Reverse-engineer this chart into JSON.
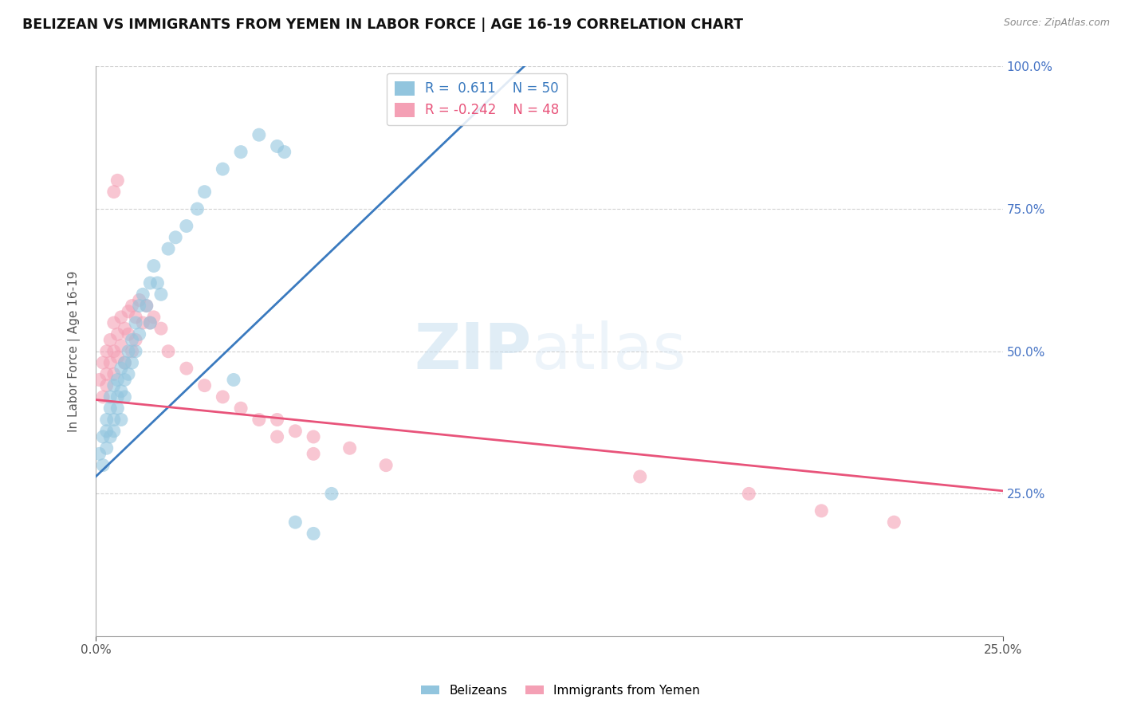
{
  "title": "BELIZEAN VS IMMIGRANTS FROM YEMEN IN LABOR FORCE | AGE 16-19 CORRELATION CHART",
  "source_text": "Source: ZipAtlas.com",
  "ylabel": "In Labor Force | Age 16-19",
  "xlim": [
    0.0,
    0.25
  ],
  "ylim": [
    0.0,
    1.0
  ],
  "blue_R": 0.611,
  "blue_N": 50,
  "pink_R": -0.242,
  "pink_N": 48,
  "blue_color": "#92c5de",
  "pink_color": "#f4a0b5",
  "blue_line_color": "#3a7abf",
  "pink_line_color": "#e8537a",
  "watermark_zip": "ZIP",
  "watermark_atlas": "atlas",
  "legend_label_blue": "Belizeans",
  "legend_label_pink": "Immigrants from Yemen",
  "blue_scatter_x": [
    0.001,
    0.002,
    0.002,
    0.003,
    0.003,
    0.003,
    0.004,
    0.004,
    0.004,
    0.005,
    0.005,
    0.005,
    0.006,
    0.006,
    0.006,
    0.007,
    0.007,
    0.007,
    0.008,
    0.008,
    0.008,
    0.009,
    0.009,
    0.01,
    0.01,
    0.011,
    0.011,
    0.012,
    0.012,
    0.013,
    0.014,
    0.015,
    0.015,
    0.016,
    0.017,
    0.018,
    0.02,
    0.022,
    0.025,
    0.028,
    0.03,
    0.035,
    0.04,
    0.045,
    0.05,
    0.055,
    0.06,
    0.065,
    0.052,
    0.038
  ],
  "blue_scatter_y": [
    0.32,
    0.35,
    0.3,
    0.38,
    0.33,
    0.36,
    0.4,
    0.35,
    0.42,
    0.38,
    0.36,
    0.44,
    0.42,
    0.4,
    0.45,
    0.43,
    0.47,
    0.38,
    0.45,
    0.48,
    0.42,
    0.5,
    0.46,
    0.52,
    0.48,
    0.55,
    0.5,
    0.58,
    0.53,
    0.6,
    0.58,
    0.62,
    0.55,
    0.65,
    0.62,
    0.6,
    0.68,
    0.7,
    0.72,
    0.75,
    0.78,
    0.82,
    0.85,
    0.88,
    0.86,
    0.2,
    0.18,
    0.25,
    0.85,
    0.45
  ],
  "pink_scatter_x": [
    0.001,
    0.002,
    0.002,
    0.003,
    0.003,
    0.003,
    0.004,
    0.004,
    0.005,
    0.005,
    0.005,
    0.006,
    0.006,
    0.007,
    0.007,
    0.008,
    0.008,
    0.009,
    0.009,
    0.01,
    0.01,
    0.011,
    0.011,
    0.012,
    0.013,
    0.014,
    0.015,
    0.016,
    0.018,
    0.02,
    0.025,
    0.03,
    0.035,
    0.04,
    0.045,
    0.05,
    0.055,
    0.06,
    0.07,
    0.08,
    0.005,
    0.006,
    0.05,
    0.06,
    0.15,
    0.18,
    0.2,
    0.22
  ],
  "pink_scatter_y": [
    0.45,
    0.48,
    0.42,
    0.5,
    0.44,
    0.46,
    0.52,
    0.48,
    0.55,
    0.5,
    0.46,
    0.53,
    0.49,
    0.56,
    0.51,
    0.54,
    0.48,
    0.57,
    0.53,
    0.58,
    0.5,
    0.56,
    0.52,
    0.59,
    0.55,
    0.58,
    0.55,
    0.56,
    0.54,
    0.5,
    0.47,
    0.44,
    0.42,
    0.4,
    0.38,
    0.38,
    0.36,
    0.35,
    0.33,
    0.3,
    0.78,
    0.8,
    0.35,
    0.32,
    0.28,
    0.25,
    0.22,
    0.2
  ],
  "blue_trendline_x0": 0.0,
  "blue_trendline_x1": 0.118,
  "blue_trendline_y0": 0.28,
  "blue_trendline_y1": 1.0,
  "pink_trendline_x0": 0.0,
  "pink_trendline_x1": 0.25,
  "pink_trendline_y0": 0.415,
  "pink_trendline_y1": 0.255
}
